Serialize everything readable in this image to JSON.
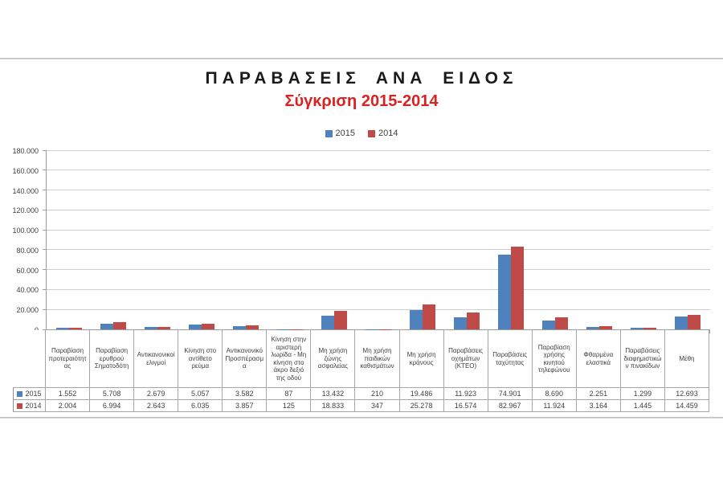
{
  "page": {
    "title": "ΠΑΡΑΒΑΣΕΙΣ ΑΝΑ ΕΙΔΟΣ",
    "subtitle": "Σύγκριση 2015-2014",
    "subtitle_color": "#d92222"
  },
  "legend": {
    "items": [
      {
        "label": "2015",
        "color": "#4F81BD"
      },
      {
        "label": "2014",
        "color": "#BE4B48"
      }
    ]
  },
  "chart_data": {
    "type": "bar",
    "title": "ΠΑΡΑΒΑΣΕΙΣ ΑΝΑ ΕΙΔΟΣ",
    "subtitle": "Σύγκριση 2015-2014",
    "categories": [
      "Παραβίαση προτεραιότητας",
      "Παραβίαση ερυθρού Σηματοδότη",
      "Αντικανονικοί ελιγμοί",
      "Κίνηση στο αντίθετο ρεύμα",
      "Αντικανονικό Προσπέρασμα",
      "Κίνηση στην αριστερή λωρίδα - Μη κίνηση στο άκρο δεξιό της οδού",
      "Μη χρήση ζώνης ασφαλείας",
      "Μη χρήση παιδικών καθισμάτων",
      "Μη χρήση κράνους",
      "Παραβάσεις οχημάτων (ΚΤΕΟ)",
      "Παραβάσεις ταχύτητας",
      "Παραβίαση χρήσης κινητού τηλεφώνου",
      "Φθαρμένα ελαστικά",
      "Παραβάσεις διαφημιστικών πινακίδων",
      "Μέθη"
    ],
    "series": [
      {
        "name": "2015",
        "color": "#4F81BD",
        "values": [
          1552,
          5708,
          2679,
          5057,
          3582,
          87,
          13432,
          210,
          19486,
          11923,
          74901,
          8690,
          2251,
          1299,
          12693
        ],
        "display": [
          "1.552",
          "5.708",
          "2.679",
          "5.057",
          "3.582",
          "87",
          "13.432",
          "210",
          "19.486",
          "11.923",
          "74.901",
          "8.690",
          "2.251",
          "1.299",
          "12.693"
        ]
      },
      {
        "name": "2014",
        "color": "#BE4B48",
        "values": [
          2004,
          6994,
          2643,
          6035,
          3857,
          125,
          18833,
          347,
          25278,
          16574,
          82967,
          11924,
          3164,
          1445,
          14459
        ],
        "display": [
          "2.004",
          "6.994",
          "2.643",
          "6.035",
          "3.857",
          "125",
          "18.833",
          "347",
          "25.278",
          "16.574",
          "82.967",
          "11.924",
          "3.164",
          "1.445",
          "14.459"
        ]
      }
    ],
    "ylim": [
      0,
      180000
    ],
    "ytick_step": 20000,
    "ytick_labels": [
      "0",
      "20.000",
      "40.000",
      "60.000",
      "80.000",
      "100.000",
      "120.000",
      "140.000",
      "160.000",
      "180.000"
    ],
    "grid": "horizontal",
    "legend_position": "top",
    "data_table_shown": true
  }
}
